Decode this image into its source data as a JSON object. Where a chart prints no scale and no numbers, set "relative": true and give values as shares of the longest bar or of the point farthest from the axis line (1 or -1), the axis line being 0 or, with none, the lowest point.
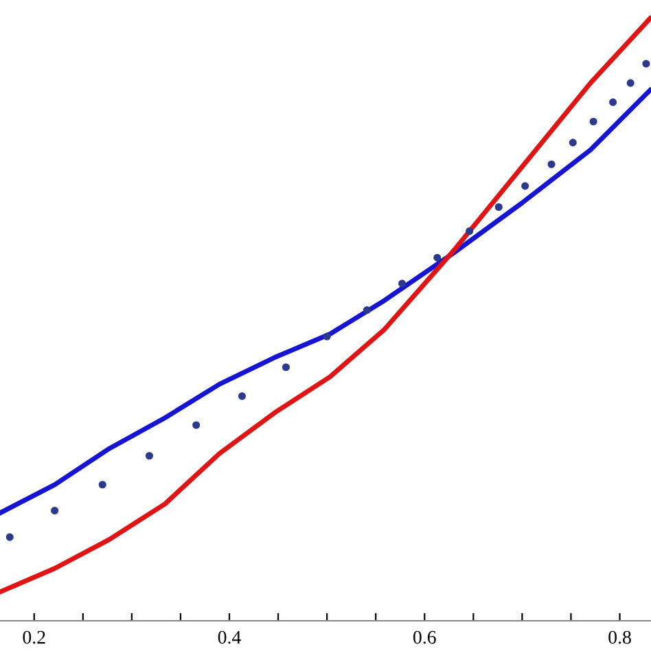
{
  "chart_data": {
    "type": "line",
    "relative": true,
    "grid": false,
    "legend": false,
    "xlim": [
      0.165,
      0.832
    ],
    "xticks": [
      {
        "value": 0.2,
        "label": "0.2"
      },
      {
        "value": 0.25,
        "label": null
      },
      {
        "value": 0.3,
        "label": null
      },
      {
        "value": 0.35,
        "label": null
      },
      {
        "value": 0.4,
        "label": "0.4"
      },
      {
        "value": 0.45,
        "label": null
      },
      {
        "value": 0.5,
        "label": null
      },
      {
        "value": 0.55,
        "label": null
      },
      {
        "value": 0.6,
        "label": "0.6"
      },
      {
        "value": 0.65,
        "label": null
      },
      {
        "value": 0.7,
        "label": null
      },
      {
        "value": 0.75,
        "label": null
      },
      {
        "value": 0.8,
        "label": "0.8"
      }
    ],
    "series": [
      {
        "type": "scatter",
        "marker": "circle",
        "color": "#2b3a8c",
        "x": [
          0.175,
          0.221,
          0.27,
          0.318,
          0.366,
          0.413,
          0.458,
          0.5,
          0.541,
          0.577,
          0.613,
          0.646,
          0.676,
          0.703,
          0.73,
          0.752,
          0.773,
          0.793,
          0.811,
          0.827
        ],
        "values": [
          0.139,
          0.183,
          0.226,
          0.274,
          0.325,
          0.373,
          0.421,
          0.472,
          0.516,
          0.56,
          0.603,
          0.647,
          0.687,
          0.722,
          0.758,
          0.794,
          0.829,
          0.861,
          0.893,
          0.925
        ]
      },
      {
        "color": "#1414d2",
        "x": [
          0.165,
          0.221,
          0.277,
          0.334,
          0.39,
          0.446,
          0.503,
          0.559,
          0.63,
          0.7,
          0.77,
          0.831
        ],
        "values": [
          0.179,
          0.226,
          0.286,
          0.337,
          0.393,
          0.437,
          0.476,
          0.532,
          0.611,
          0.694,
          0.782,
          0.881
        ]
      },
      {
        "color": "#e01414",
        "x": [
          0.165,
          0.221,
          0.277,
          0.334,
          0.39,
          0.446,
          0.503,
          0.559,
          0.63,
          0.7,
          0.77,
          0.831
        ],
        "values": [
          0.048,
          0.087,
          0.135,
          0.194,
          0.278,
          0.345,
          0.405,
          0.484,
          0.615,
          0.754,
          0.893,
          1.0
        ]
      }
    ]
  }
}
